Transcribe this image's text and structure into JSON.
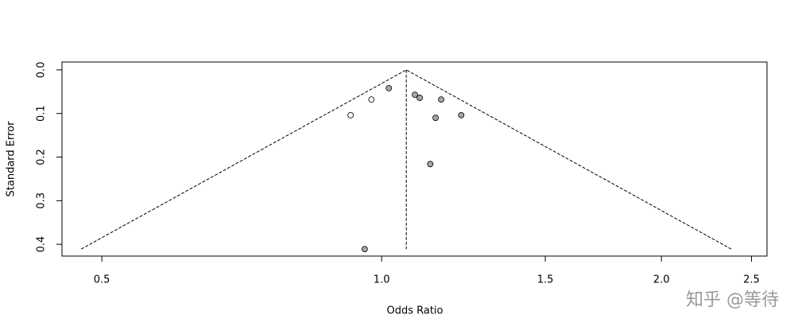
{
  "chart_data": {
    "type": "funnel",
    "x_label": "Odds Ratio",
    "y_label": "Standard Error",
    "x_log": true,
    "y_reversed": true,
    "xlim": [
      0.453,
      2.598
    ],
    "ylim": [
      -0.018,
      0.427
    ],
    "xticks": [
      0.5,
      {
        "value": 1.0,
        "label": "1.0"
      },
      1.5,
      {
        "value": 2.0,
        "label": "2.0"
      },
      2.5
    ],
    "yticks": [
      {
        "value": 0,
        "label": "0.0"
      },
      0.1,
      0.2,
      0.3,
      0.4
    ],
    "x": [
      0.926,
      0.975,
      1.018,
      1.086,
      1.099,
      1.159,
      1.218,
      1.143,
      1.128,
      0.959
    ],
    "values": [
      0.104,
      0.068,
      0.042,
      0.057,
      0.064,
      0.068,
      0.104,
      0.11,
      0.216,
      0.411
    ],
    "colors": [
      "#f2f2f2",
      "#f2f2f2",
      "#a6a6a6",
      "#a6a6a6",
      "#a6a6a6",
      "#a6a6a6",
      "#a6a6a6",
      "#a6a6a6",
      "#a6a6a6",
      "#a6a6a6"
    ],
    "funnel": {
      "x": [
        0.475,
        1.063,
        2.378
      ],
      "y": [
        0.411,
        0,
        0.411
      ]
    },
    "center_line": {
      "x": [
        1.063,
        1.063
      ],
      "y": [
        0,
        0.411
      ]
    },
    "watermark": "知乎 @等待"
  }
}
